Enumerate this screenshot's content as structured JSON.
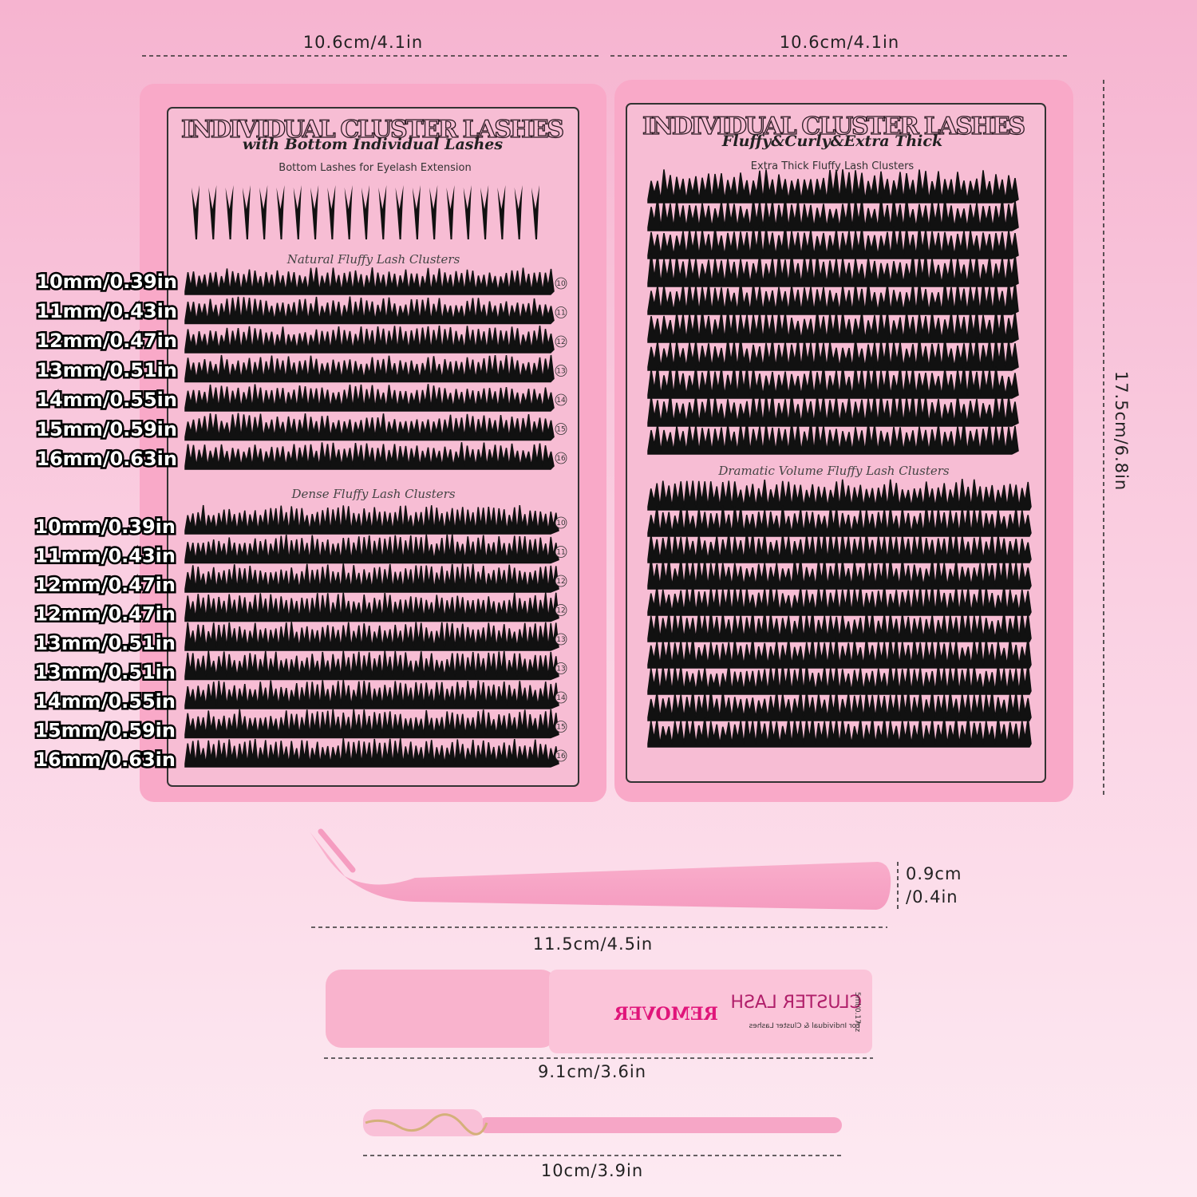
{
  "dimensions": {
    "left_width": "10.6cm/4.1in",
    "right_width": "10.6cm/4.1in",
    "height": "17.5cm/6.8in",
    "tweezers_width": [
      "0.9cm",
      "/0.4in"
    ],
    "tweezers_length": "11.5cm/4.5in",
    "remover_length": "9.1cm/3.6in",
    "brush_length": "10cm/3.9in"
  },
  "left_tray": {
    "header": "INDIVIDUAL CLUSTER LASHES",
    "subtitle": "with Bottom Individual Lashes",
    "caption": "Bottom Lashes for Eyelash Extension",
    "section_1": "Natural Fluffy Lash Clusters",
    "section_2": "Dense Fluffy Lash Clusters",
    "numbers_1": [
      "10",
      "11",
      "12",
      "13",
      "14",
      "15",
      "16"
    ],
    "numbers_2": [
      "10",
      "11",
      "12",
      "12",
      "13",
      "13",
      "14",
      "15",
      "16"
    ]
  },
  "right_tray": {
    "header": "INDIVIDUAL CLUSTER LASHES",
    "subtitle": "Fluffy&Curly&Extra Thick",
    "caption": "Extra Thick Fluffy Lash Clusters",
    "section_2": "Dramatic Volume Fluffy Lash Clusters"
  },
  "length_labels_1": [
    "10mm/0.39in",
    "11mm/0.43in",
    "12mm/0.47in",
    "13mm/0.51in",
    "14mm/0.55in",
    "15mm/0.59in",
    "16mm/0.63in"
  ],
  "length_labels_2": [
    "10mm/0.39in",
    "11mm/0.43in",
    "12mm/0.47in",
    "12mm/0.47in",
    "13mm/0.51in",
    "13mm/0.51in",
    "14mm/0.55in",
    "15mm/0.59in",
    "16mm/0.63in"
  ],
  "remover": {
    "title": "CLUSTER LASH",
    "name": "REMOVER",
    "note": "For Individual & Cluster Lashes",
    "volume": "5ml/0.17oz"
  }
}
